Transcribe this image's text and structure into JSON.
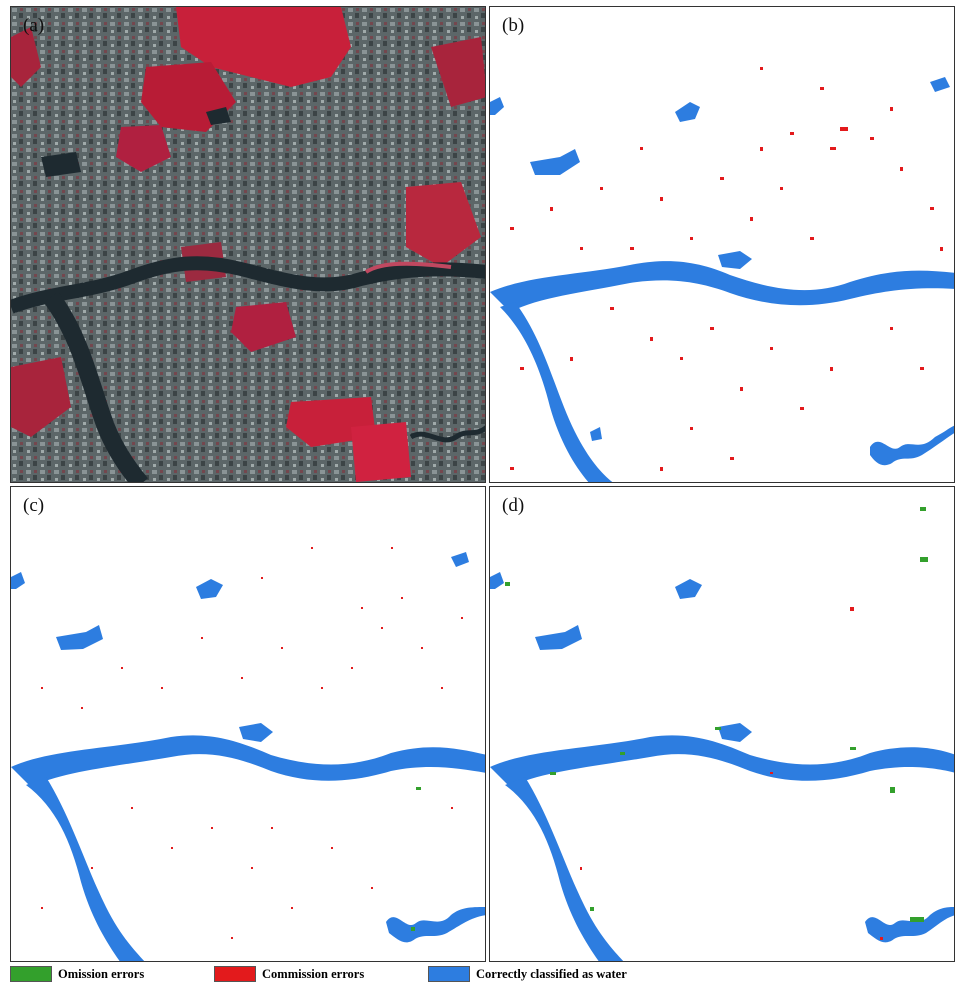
{
  "panels": [
    {
      "label": "(a)",
      "kind": "false-color"
    },
    {
      "label": "(b)",
      "kind": "classification"
    },
    {
      "label": "(c)",
      "kind": "classification"
    },
    {
      "label": "(d)",
      "kind": "classification"
    }
  ],
  "colors": {
    "omission": "#33a02c",
    "commission": "#e31a1c",
    "water": "#2d7de0",
    "satellite_water": "#1e2a30",
    "vegetation": "#c8203a"
  },
  "legend": [
    {
      "label": "Omission errors",
      "color": "#33a02c"
    },
    {
      "label": "Commission errors",
      "color": "#e31a1c"
    },
    {
      "label": "Correctly classified as water",
      "color": "#2d7de0"
    }
  ]
}
